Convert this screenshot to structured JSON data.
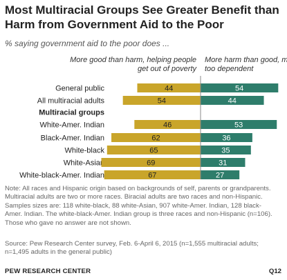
{
  "title": "Most Multiracial Groups See Greater Benefit than Harm from Government Aid to the Poor",
  "subtitle": "% saying government aid to the poor does ...",
  "chart_data": {
    "type": "bar",
    "orientation": "diverging-horizontal",
    "series": [
      {
        "name": "More good than harm, helping people  get out of poverty",
        "color": "#C9A52A",
        "side": "left"
      },
      {
        "name": "More harm than good, making people  too dependent",
        "color": "#2E7D6B",
        "side": "right"
      }
    ],
    "rows": [
      {
        "label": "General public",
        "bold": false,
        "good": 44,
        "harm": 54
      },
      {
        "label": "All multiracial adults",
        "bold": false,
        "good": 54,
        "harm": 44
      },
      {
        "label": "Multiracial groups",
        "bold": true,
        "good": null,
        "harm": null
      },
      {
        "label": "White-Amer. Indian",
        "bold": false,
        "good": 46,
        "harm": 53
      },
      {
        "label": "Black-Amer. Indian",
        "bold": false,
        "good": 62,
        "harm": 36
      },
      {
        "label": "White-black",
        "bold": false,
        "good": 65,
        "harm": 35
      },
      {
        "label": "White-Asian",
        "bold": false,
        "good": 69,
        "harm": 31
      },
      {
        "label": "White-black-Amer. Indian",
        "bold": false,
        "good": 67,
        "harm": 27
      }
    ]
  },
  "note_lines": [
    "Note: All races and Hispanic origin based on backgrounds of self, parents or grandparents.",
    "Multiracial adults are two or more races. Biracial adults are two races and non-Hispanic.",
    "Samples sizes are: 118 white-black, 88 white-Asian, 907 white-Amer. Indian, 128 black-",
    "Amer. Indian. The white-black-Amer. Indian group is three races and non-Hispanic (n=106).",
    "Those who gave no answer are not shown."
  ],
  "source_lines": [
    "Source: Pew Research Center survey, Feb. 6-April 6, 2015 (n=1,555 multiracial adults;",
    "n=1,495 adults in the general public)"
  ],
  "footer": "PEW RESEARCH CENTER",
  "code": "Q12"
}
